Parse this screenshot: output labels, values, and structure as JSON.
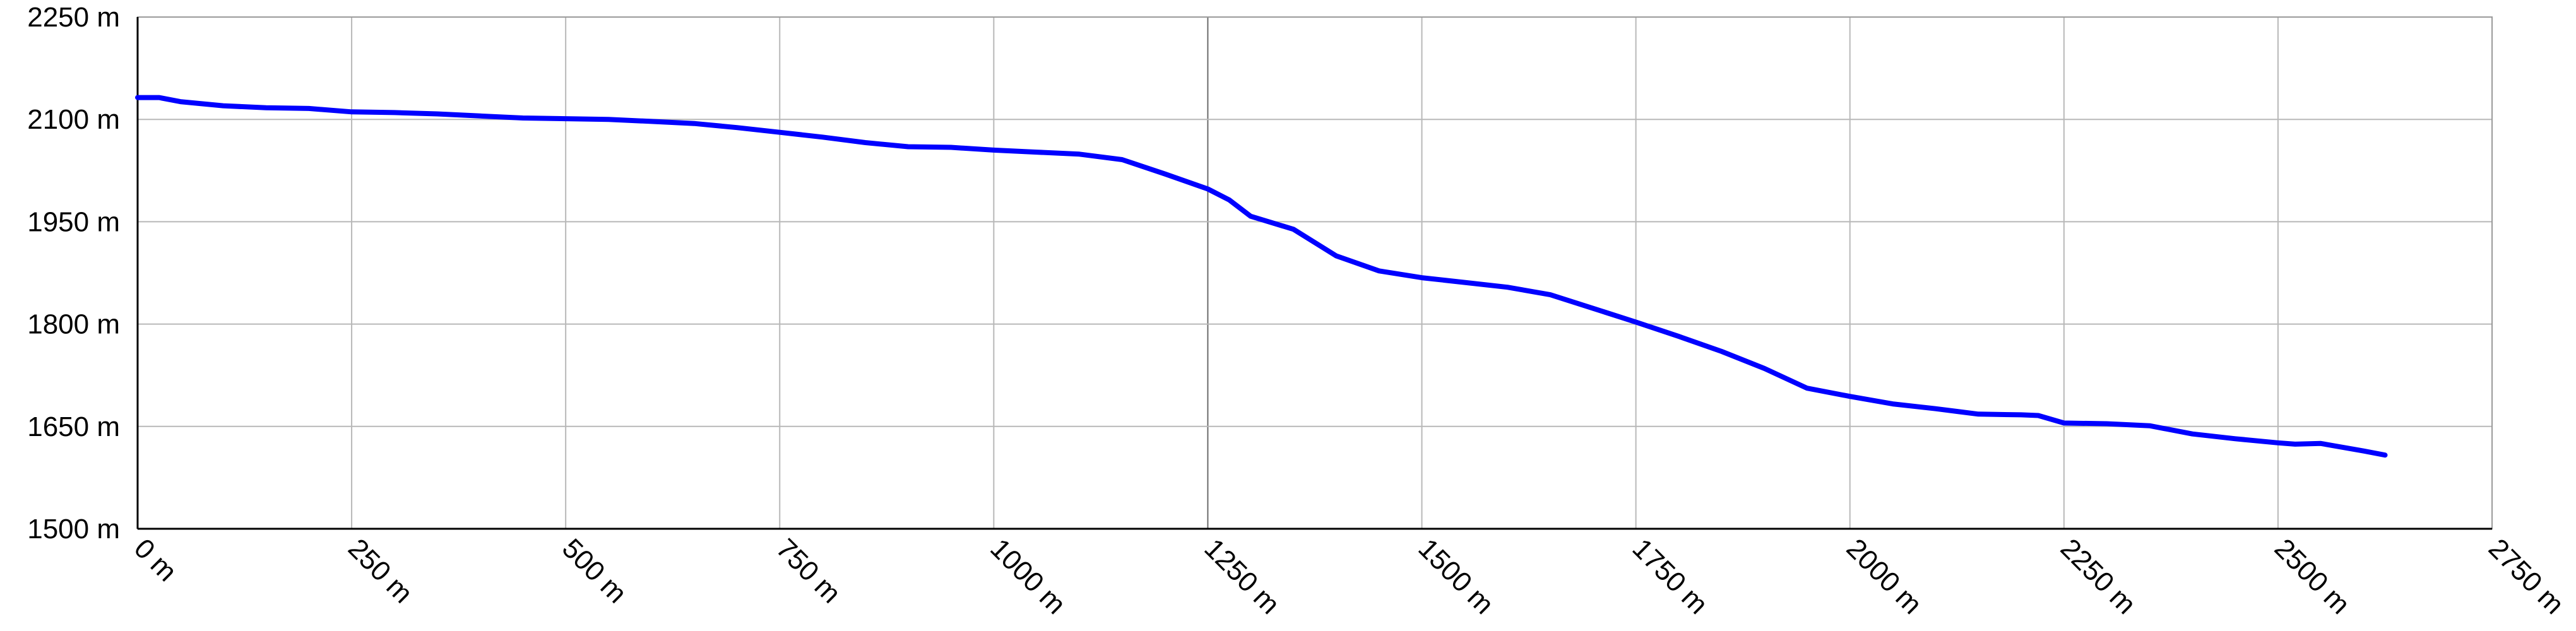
{
  "chart_data": {
    "type": "line",
    "title": "",
    "xlabel": "",
    "ylabel": "",
    "xlim": [
      0,
      2750
    ],
    "ylim": [
      1500,
      2250
    ],
    "grid": true,
    "legend": "none",
    "x_ticks": [
      {
        "value": 0,
        "label": "0 m"
      },
      {
        "value": 250,
        "label": "250 m"
      },
      {
        "value": 500,
        "label": "500 m"
      },
      {
        "value": 750,
        "label": "750 m"
      },
      {
        "value": 1000,
        "label": "1000 m"
      },
      {
        "value": 1250,
        "label": "1250 m"
      },
      {
        "value": 1500,
        "label": "1500 m"
      },
      {
        "value": 1750,
        "label": "1750 m"
      },
      {
        "value": 2000,
        "label": "2000 m"
      },
      {
        "value": 2250,
        "label": "2250 m"
      },
      {
        "value": 2500,
        "label": "2500 m"
      },
      {
        "value": 2750,
        "label": "2750 m"
      }
    ],
    "y_ticks": [
      {
        "value": 1500,
        "label": "1500 m"
      },
      {
        "value": 1650,
        "label": "1650 m"
      },
      {
        "value": 1800,
        "label": "1800 m"
      },
      {
        "value": 1950,
        "label": "1950 m"
      },
      {
        "value": 2100,
        "label": "2100 m"
      },
      {
        "value": 2250,
        "label": "2250 m"
      }
    ],
    "series": [
      {
        "color": "#0000ff",
        "points": [
          [
            0,
            2132
          ],
          [
            25,
            2132
          ],
          [
            50,
            2126
          ],
          [
            100,
            2120
          ],
          [
            150,
            2117
          ],
          [
            200,
            2116
          ],
          [
            250,
            2111
          ],
          [
            300,
            2110
          ],
          [
            350,
            2108
          ],
          [
            400,
            2105
          ],
          [
            450,
            2102
          ],
          [
            500,
            2101
          ],
          [
            550,
            2100
          ],
          [
            600,
            2097
          ],
          [
            650,
            2094
          ],
          [
            700,
            2088
          ],
          [
            750,
            2081
          ],
          [
            800,
            2074
          ],
          [
            850,
            2066
          ],
          [
            900,
            2060
          ],
          [
            950,
            2059
          ],
          [
            1000,
            2055
          ],
          [
            1050,
            2052
          ],
          [
            1100,
            2049
          ],
          [
            1150,
            2041
          ],
          [
            1200,
            2020
          ],
          [
            1250,
            1998
          ],
          [
            1275,
            1982
          ],
          [
            1300,
            1958
          ],
          [
            1350,
            1939
          ],
          [
            1400,
            1900
          ],
          [
            1450,
            1878
          ],
          [
            1500,
            1868
          ],
          [
            1550,
            1861
          ],
          [
            1600,
            1854
          ],
          [
            1650,
            1843
          ],
          [
            1700,
            1823
          ],
          [
            1750,
            1803
          ],
          [
            1800,
            1782
          ],
          [
            1850,
            1760
          ],
          [
            1900,
            1735
          ],
          [
            1950,
            1706
          ],
          [
            2000,
            1694
          ],
          [
            2050,
            1683
          ],
          [
            2100,
            1676
          ],
          [
            2125,
            1672
          ],
          [
            2150,
            1668
          ],
          [
            2200,
            1667
          ],
          [
            2220,
            1666
          ],
          [
            2250,
            1655
          ],
          [
            2300,
            1654
          ],
          [
            2350,
            1651
          ],
          [
            2400,
            1639
          ],
          [
            2450,
            1632
          ],
          [
            2500,
            1626
          ],
          [
            2520,
            1624
          ],
          [
            2550,
            1625
          ],
          [
            2600,
            1614
          ],
          [
            2625,
            1608
          ]
        ]
      }
    ]
  }
}
